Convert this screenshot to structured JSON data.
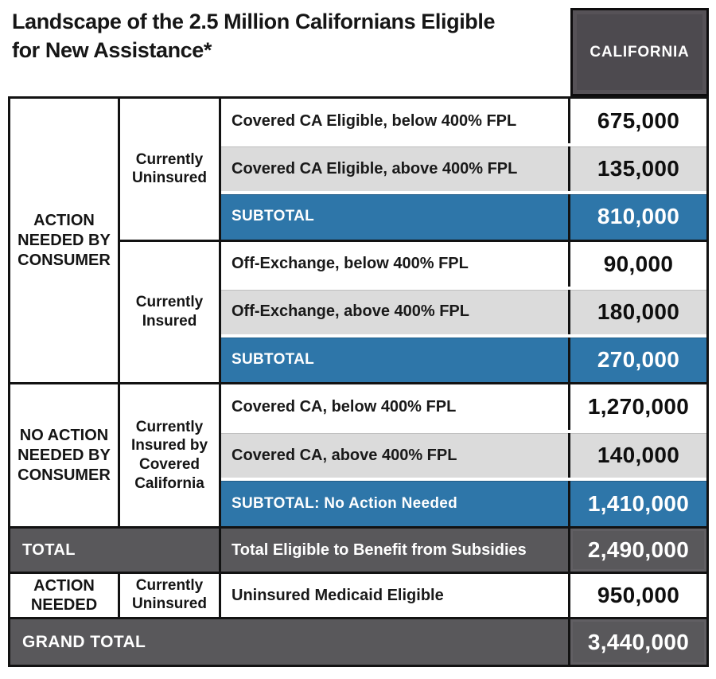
{
  "title": {
    "line1": "Landscape of the 2.5 Million Californians Eligible",
    "line2": "for New Assistance*"
  },
  "header": {
    "column_label": "CALIFORNIA"
  },
  "colors": {
    "subtotal_blue": "#2E76A9",
    "alt_row_gray": "#DBDBDB",
    "total_dark_gray": "#59585B",
    "header_box_gray": "#4D4A4F",
    "border_black": "#121212"
  },
  "table": {
    "group1": {
      "col1": "ACTION NEEDED BY CONSUMER",
      "sub1": {
        "col2": "Currently Uninsured",
        "rows": [
          {
            "label": "Covered CA Eligible, below 400% FPL",
            "value": "675,000"
          },
          {
            "label": "Covered CA Eligible, above 400% FPL",
            "value": "135,000"
          },
          {
            "label": "SUBTOTAL",
            "value": "810,000"
          }
        ]
      },
      "sub2": {
        "col2": "Currently Insured",
        "rows": [
          {
            "label": "Off-Exchange, below 400% FPL",
            "value": "90,000"
          },
          {
            "label": "Off-Exchange, above 400% FPL",
            "value": "180,000"
          },
          {
            "label": "SUBTOTAL",
            "value": "270,000"
          }
        ]
      }
    },
    "group2": {
      "col1": "NO ACTION NEEDED BY CONSUMER",
      "sub1": {
        "col2": "Currently Insured by Covered California",
        "rows": [
          {
            "label": "Covered CA, below 400% FPL",
            "value": "1,270,000"
          },
          {
            "label": "Covered CA, above 400% FPL",
            "value": "140,000"
          },
          {
            "label": "SUBTOTAL: No Action Needed",
            "value": "1,410,000"
          }
        ]
      }
    },
    "total_row": {
      "col1": "TOTAL",
      "label": "Total Eligible to Benefit from Subsidies",
      "value": "2,490,000"
    },
    "action_row": {
      "col1": "ACTION NEEDED",
      "col2": "Currently Uninsured",
      "label": "Uninsured Medicaid Eligible",
      "value": "950,000"
    },
    "grand_row": {
      "label": "GRAND TOTAL",
      "value": "3,440,000"
    }
  },
  "chart_data": {
    "type": "table",
    "title": "Landscape of the 2.5 Million Californians Eligible for New Assistance*",
    "value_column": "CALIFORNIA",
    "rows": [
      {
        "group": "ACTION NEEDED BY CONSUMER",
        "subgroup": "Currently Uninsured",
        "label": "Covered CA Eligible, below 400% FPL",
        "value": 675000
      },
      {
        "group": "ACTION NEEDED BY CONSUMER",
        "subgroup": "Currently Uninsured",
        "label": "Covered CA Eligible, above 400% FPL",
        "value": 135000
      },
      {
        "group": "ACTION NEEDED BY CONSUMER",
        "subgroup": "Currently Uninsured",
        "label": "SUBTOTAL",
        "value": 810000
      },
      {
        "group": "ACTION NEEDED BY CONSUMER",
        "subgroup": "Currently Insured",
        "label": "Off-Exchange, below 400% FPL",
        "value": 90000
      },
      {
        "group": "ACTION NEEDED BY CONSUMER",
        "subgroup": "Currently Insured",
        "label": "Off-Exchange, above 400% FPL",
        "value": 180000
      },
      {
        "group": "ACTION NEEDED BY CONSUMER",
        "subgroup": "Currently Insured",
        "label": "SUBTOTAL",
        "value": 270000
      },
      {
        "group": "NO ACTION NEEDED BY CONSUMER",
        "subgroup": "Currently Insured by Covered California",
        "label": "Covered CA, below 400% FPL",
        "value": 1270000
      },
      {
        "group": "NO ACTION NEEDED BY CONSUMER",
        "subgroup": "Currently Insured by Covered California",
        "label": "Covered CA, above 400% FPL",
        "value": 140000
      },
      {
        "group": "NO ACTION NEEDED BY CONSUMER",
        "subgroup": "Currently Insured by Covered California",
        "label": "SUBTOTAL: No Action Needed",
        "value": 1410000
      },
      {
        "group": "TOTAL",
        "subgroup": "",
        "label": "Total Eligible to Benefit from Subsidies",
        "value": 2490000
      },
      {
        "group": "ACTION NEEDED",
        "subgroup": "Currently Uninsured",
        "label": "Uninsured Medicaid Eligible",
        "value": 950000
      },
      {
        "group": "GRAND TOTAL",
        "subgroup": "",
        "label": "GRAND TOTAL",
        "value": 3440000
      }
    ]
  }
}
